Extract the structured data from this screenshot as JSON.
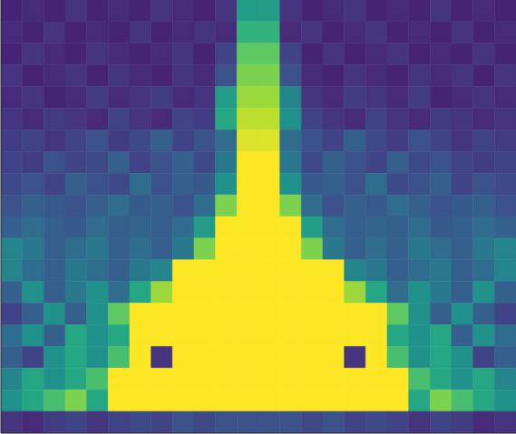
{
  "chart_data": {
    "type": "heatmap",
    "cells": [
      [
        0.1,
        0.12,
        0.1,
        0.15,
        0.1,
        0.12,
        0.1,
        0.15,
        0.12,
        0.1,
        0.15,
        0.55,
        0.55,
        0.15,
        0.1,
        0.12,
        0.15,
        0.1,
        0.12,
        0.1,
        0.15,
        0.1,
        0.12,
        0.1
      ],
      [
        0.12,
        0.1,
        0.15,
        0.1,
        0.12,
        0.1,
        0.15,
        0.1,
        0.12,
        0.15,
        0.12,
        0.65,
        0.65,
        0.12,
        0.15,
        0.1,
        0.12,
        0.15,
        0.1,
        0.12,
        0.1,
        0.15,
        0.1,
        0.12
      ],
      [
        0.1,
        0.15,
        0.12,
        0.1,
        0.15,
        0.12,
        0.1,
        0.12,
        0.15,
        0.1,
        0.2,
        0.75,
        0.75,
        0.2,
        0.1,
        0.15,
        0.1,
        0.12,
        0.15,
        0.1,
        0.12,
        0.1,
        0.15,
        0.1
      ],
      [
        0.15,
        0.1,
        0.12,
        0.15,
        0.1,
        0.15,
        0.12,
        0.1,
        0.15,
        0.12,
        0.25,
        0.8,
        0.8,
        0.25,
        0.12,
        0.1,
        0.15,
        0.12,
        0.1,
        0.15,
        0.12,
        0.15,
        0.1,
        0.15
      ],
      [
        0.12,
        0.15,
        0.1,
        0.12,
        0.18,
        0.12,
        0.15,
        0.18,
        0.12,
        0.15,
        0.55,
        0.85,
        0.85,
        0.45,
        0.15,
        0.12,
        0.18,
        0.15,
        0.12,
        0.18,
        0.1,
        0.12,
        0.15,
        0.12
      ],
      [
        0.15,
        0.12,
        0.18,
        0.15,
        0.12,
        0.2,
        0.15,
        0.12,
        0.2,
        0.18,
        0.6,
        0.9,
        0.9,
        0.5,
        0.2,
        0.15,
        0.12,
        0.2,
        0.15,
        0.12,
        0.18,
        0.15,
        0.12,
        0.15
      ],
      [
        0.18,
        0.2,
        0.15,
        0.2,
        0.25,
        0.18,
        0.22,
        0.3,
        0.2,
        0.25,
        0.35,
        0.95,
        0.95,
        0.35,
        0.25,
        0.2,
        0.3,
        0.22,
        0.18,
        0.25,
        0.2,
        0.15,
        0.2,
        0.18
      ],
      [
        0.2,
        0.18,
        0.25,
        0.2,
        0.22,
        0.3,
        0.2,
        0.25,
        0.3,
        0.22,
        0.4,
        1,
        1,
        0.4,
        0.22,
        0.3,
        0.25,
        0.2,
        0.3,
        0.22,
        0.25,
        0.2,
        0.18,
        0.2
      ],
      [
        0.22,
        0.25,
        0.2,
        0.3,
        0.25,
        0.22,
        0.35,
        0.25,
        0.3,
        0.28,
        0.5,
        1,
        1,
        0.5,
        0.28,
        0.3,
        0.25,
        0.35,
        0.22,
        0.25,
        0.3,
        0.2,
        0.25,
        0.22
      ],
      [
        0.25,
        0.3,
        0.28,
        0.25,
        0.3,
        0.35,
        0.28,
        0.3,
        0.25,
        0.35,
        0.8,
        1,
        1,
        0.8,
        0.35,
        0.25,
        0.3,
        0.28,
        0.35,
        0.3,
        0.25,
        0.28,
        0.3,
        0.25
      ],
      [
        0.3,
        0.35,
        0.3,
        0.28,
        0.35,
        0.3,
        0.32,
        0.3,
        0.35,
        0.55,
        1,
        1,
        1,
        1,
        0.55,
        0.35,
        0.3,
        0.32,
        0.3,
        0.35,
        0.28,
        0.3,
        0.35,
        0.3
      ],
      [
        0.45,
        0.4,
        0.3,
        0.35,
        0.4,
        0.3,
        0.35,
        0.3,
        0.4,
        0.8,
        1,
        1,
        1,
        1,
        0.8,
        0.4,
        0.3,
        0.35,
        0.3,
        0.4,
        0.35,
        0.3,
        0.4,
        0.45
      ],
      [
        0.45,
        0.35,
        0.3,
        0.4,
        0.35,
        0.3,
        0.4,
        0.45,
        1,
        1,
        1,
        1,
        1,
        1,
        1,
        1,
        0.45,
        0.4,
        0.3,
        0.35,
        0.4,
        0.3,
        0.35,
        0.45
      ],
      [
        0.3,
        0.5,
        0.3,
        0.4,
        0.5,
        0.35,
        0.6,
        0.85,
        1,
        1,
        1,
        1,
        1,
        1,
        1,
        1,
        0.85,
        0.6,
        0.35,
        0.5,
        0.4,
        0.3,
        0.5,
        0.3
      ],
      [
        0.2,
        0.3,
        0.5,
        0.3,
        0.5,
        0.75,
        1,
        1,
        1,
        1,
        1,
        1,
        1,
        1,
        1,
        1,
        1,
        1,
        0.75,
        0.5,
        0.3,
        0.5,
        0.3,
        0.2
      ],
      [
        0.35,
        0.5,
        0.3,
        0.6,
        0.5,
        0.6,
        1,
        1,
        1,
        1,
        1,
        1,
        1,
        1,
        1,
        1,
        1,
        1,
        0.6,
        0.5,
        0.6,
        0.3,
        0.5,
        0.35
      ],
      [
        0.3,
        0.2,
        0.5,
        0.6,
        0.5,
        0.7,
        1,
        0.15,
        1,
        1,
        1,
        1,
        1,
        1,
        1,
        1,
        0.15,
        1,
        0.7,
        0.5,
        0.6,
        0.5,
        0.2,
        0.3
      ],
      [
        0.45,
        0.6,
        0.5,
        0.6,
        0.7,
        1,
        1,
        1,
        1,
        1,
        1,
        1,
        1,
        1,
        1,
        1,
        1,
        1,
        1,
        0.7,
        0.6,
        0.5,
        0.6,
        0.45
      ],
      [
        0.5,
        0.6,
        0.7,
        0.8,
        0.6,
        1,
        1,
        1,
        1,
        1,
        1,
        1,
        1,
        1,
        1,
        1,
        1,
        1,
        1,
        0.6,
        0.8,
        0.7,
        0.6,
        0.5
      ],
      [
        0.15,
        0.12,
        0.18,
        0.2,
        0.15,
        0.2,
        0.22,
        0.2,
        0.25,
        0.22,
        0.25,
        0.25,
        0.25,
        0.25,
        0.22,
        0.25,
        0.2,
        0.22,
        0.2,
        0.15,
        0.2,
        0.18,
        0.12,
        0.15
      ]
    ],
    "xlim": [
      0,
      24
    ],
    "ylim": [
      0,
      20
    ],
    "clim": [
      0,
      1
    ],
    "tick_labels": false
  }
}
